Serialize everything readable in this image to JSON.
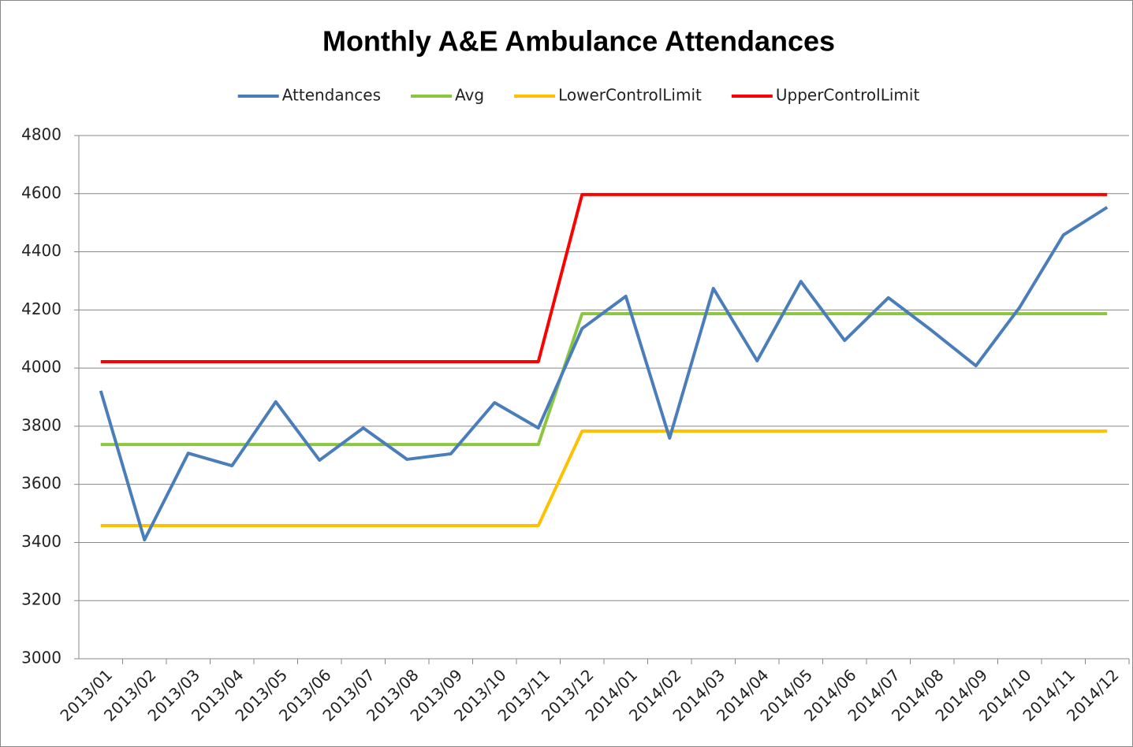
{
  "chart_data": {
    "type": "line",
    "title": "Monthly A&E Ambulance Attendances",
    "categories": [
      "2013/01",
      "2013/02",
      "2013/03",
      "2013/04",
      "2013/05",
      "2013/06",
      "2013/07",
      "2013/08",
      "2013/09",
      "2013/10",
      "2013/11",
      "2013/12",
      "2014/01",
      "2014/02",
      "2014/03",
      "2014/04",
      "2014/05",
      "2014/06",
      "2014/07",
      "2014/08",
      "2014/09",
      "2014/10",
      "2014/11",
      "2014/12"
    ],
    "series": [
      {
        "name": "Attendances",
        "color": "#4a7ebb",
        "values": [
          3922,
          3409,
          3707,
          3664,
          3884,
          3683,
          3794,
          3686,
          3705,
          3881,
          3794,
          4136,
          4247,
          3759,
          4274,
          4025,
          4298,
          4095,
          4242,
          4128,
          4008,
          4209,
          4458,
          4553
        ]
      },
      {
        "name": "Avg",
        "color": "#8cc63f",
        "values": [
          3737,
          3737,
          3737,
          3737,
          3737,
          3737,
          3737,
          3737,
          3737,
          3737,
          3737,
          4187,
          4187,
          4187,
          4187,
          4187,
          4187,
          4187,
          4187,
          4187,
          4187,
          4187,
          4187,
          4187
        ]
      },
      {
        "name": "LowerControlLimit",
        "color": "#ffc000",
        "values": [
          3458,
          3458,
          3458,
          3458,
          3458,
          3458,
          3458,
          3458,
          3458,
          3458,
          3458,
          3783,
          3783,
          3783,
          3783,
          3783,
          3783,
          3783,
          3783,
          3783,
          3783,
          3783,
          3783,
          3783
        ]
      },
      {
        "name": "UpperControlLimit",
        "color": "#ff0000",
        "values": [
          4022,
          4022,
          4022,
          4022,
          4022,
          4022,
          4022,
          4022,
          4022,
          4022,
          4022,
          4597,
          4597,
          4597,
          4597,
          4597,
          4597,
          4597,
          4597,
          4597,
          4597,
          4597,
          4597,
          4597
        ]
      }
    ],
    "ylim": [
      3000,
      4800
    ],
    "yticks": [
      3000,
      3200,
      3400,
      3600,
      3800,
      4000,
      4200,
      4400,
      4600,
      4800
    ],
    "grid": true,
    "legend": "top"
  }
}
